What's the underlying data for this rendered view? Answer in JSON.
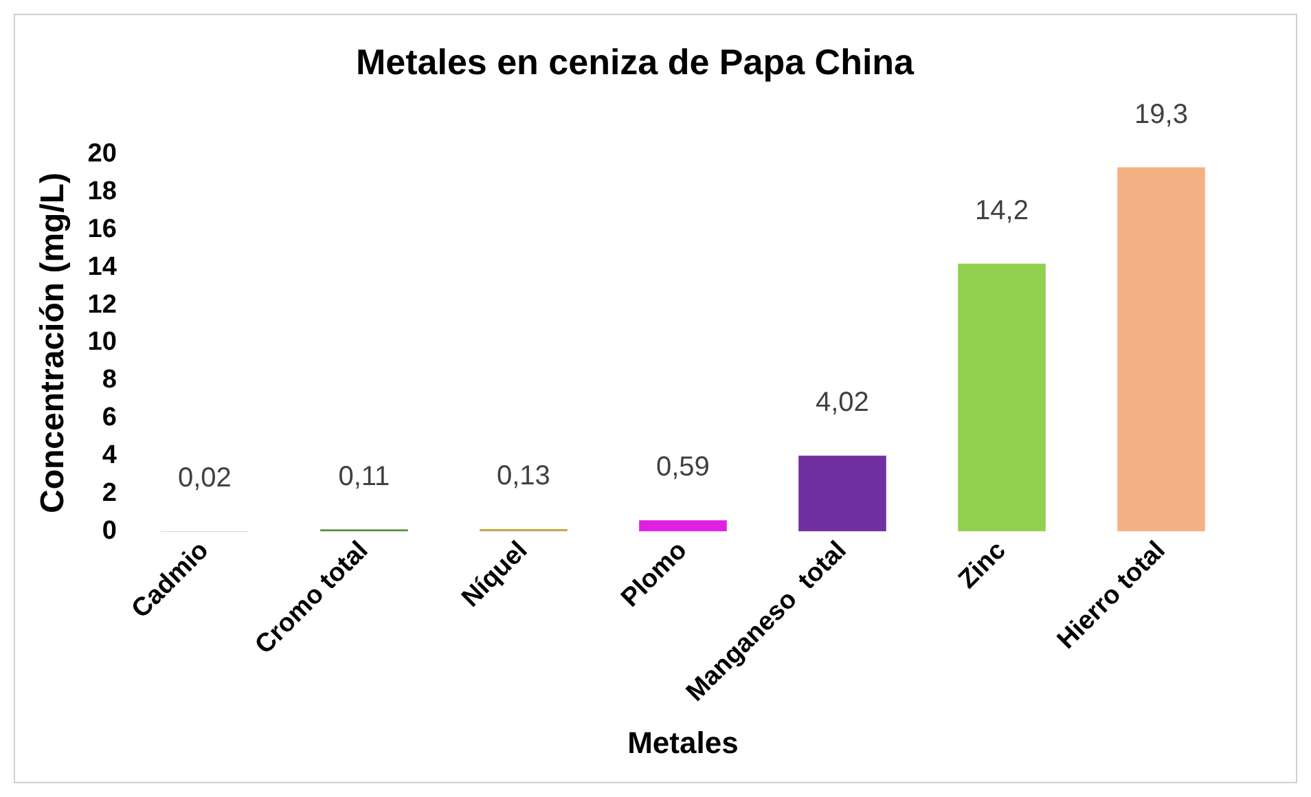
{
  "chart_data": {
    "type": "bar",
    "title": "Metales en ceniza de Papa China",
    "xlabel": "Metales",
    "ylabel": "Concentración (mg/L)",
    "categories": [
      "Cadmio",
      "Cromo total",
      "Níquel",
      "Plomo",
      "Manganeso  total",
      "Zinc",
      "Hierro total"
    ],
    "values": [
      0.02,
      0.11,
      0.13,
      0.59,
      4.02,
      14.2,
      19.3
    ],
    "value_labels": [
      "0,02",
      "0,11",
      "0,13",
      "0,59",
      "4,02",
      "14,2",
      "19,3"
    ],
    "colors": [
      "#4a7eb0",
      "#5a8a3a",
      "#c8a84a",
      "#e020e0",
      "#7030a0",
      "#92d050",
      "#f4b183"
    ],
    "ylim": [
      0,
      20
    ],
    "yticks": [
      0,
      2,
      4,
      6,
      8,
      10,
      12,
      14,
      16,
      18,
      20
    ],
    "grid": false,
    "legend": false
  }
}
